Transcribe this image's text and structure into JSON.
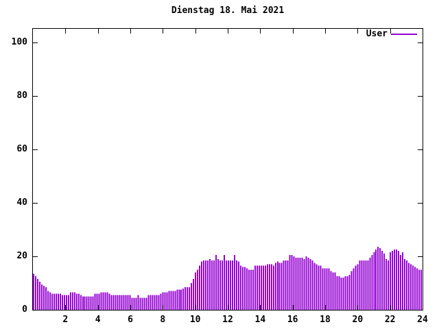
{
  "title": "Dienstag 18. Mai 2021",
  "legend": {
    "label": "User",
    "color": "#9400D3",
    "position": "top-right"
  },
  "axes": {
    "y_ticks": [
      0,
      20,
      40,
      60,
      80,
      100
    ],
    "x_ticks": [
      2,
      4,
      6,
      8,
      10,
      12,
      14,
      16,
      18,
      20,
      22,
      24
    ]
  },
  "colors": {
    "bar": "#9400D3",
    "axis": "#000000",
    "background": "#ffffff"
  },
  "chart_data": {
    "type": "bar",
    "title": "Dienstag 18. Mai 2021",
    "xlabel": "",
    "ylabel": "",
    "x_unit": "hour_of_day",
    "xlim": [
      0,
      24
    ],
    "ylim": [
      0,
      105
    ],
    "x_tick_step": 2,
    "y_tick_step": 20,
    "grid": false,
    "legend_position": "top-right",
    "series": [
      {
        "name": "User",
        "color": "#9400D3",
        "values": [
          13.5,
          12.5,
          11.5,
          10.5,
          9.5,
          9,
          8.5,
          7,
          6.5,
          6,
          6,
          6,
          6,
          6,
          5.5,
          5.5,
          5.5,
          5.5,
          6.5,
          6.5,
          6.5,
          6,
          6,
          5.5,
          5,
          5,
          5,
          5,
          5,
          5,
          6,
          6,
          6,
          6.5,
          6.5,
          6.5,
          6.5,
          6,
          5.5,
          5.5,
          5.5,
          5.5,
          5.5,
          5.5,
          5.5,
          5.5,
          5.5,
          5.5,
          4.5,
          4.5,
          4.5,
          5.5,
          4.5,
          4.5,
          4.5,
          4.5,
          5.5,
          5.5,
          5.5,
          5.5,
          5.5,
          5.5,
          6,
          6.5,
          6.5,
          6.5,
          7,
          7,
          7,
          7,
          7.5,
          7.5,
          7.5,
          8,
          8.5,
          8.5,
          8.5,
          10,
          11.5,
          14,
          15,
          16.5,
          18,
          18.5,
          18.5,
          18.5,
          19,
          18.5,
          18.5,
          20.5,
          19,
          18.5,
          18.5,
          20.5,
          18.5,
          18.5,
          18.5,
          18.5,
          20.5,
          18.5,
          18,
          16.5,
          16,
          16,
          15.5,
          15,
          15,
          15,
          16.5,
          16.5,
          16.5,
          16.5,
          16.5,
          16.5,
          17,
          17,
          17,
          16.5,
          17.5,
          18,
          17.5,
          17.5,
          18.5,
          18.5,
          18.5,
          20.5,
          20.5,
          20,
          19.5,
          19.5,
          19.5,
          19.5,
          19,
          20,
          19.5,
          19,
          18.5,
          17.5,
          17,
          16.5,
          16.5,
          15.5,
          15.5,
          15.5,
          15.5,
          14.5,
          14,
          14,
          12.5,
          12.5,
          12,
          12,
          12.5,
          12.5,
          13,
          14.5,
          15.5,
          16.5,
          17,
          18.5,
          18.5,
          18.5,
          18.5,
          18.5,
          19.5,
          20.5,
          21.5,
          22.5,
          23.5,
          23,
          22,
          21,
          19,
          18.5,
          21.5,
          22,
          22.5,
          22.5,
          22,
          20.5,
          21.5,
          19,
          18.5,
          17.5,
          17,
          16.5,
          16,
          15.5,
          15,
          15
        ]
      }
    ]
  }
}
